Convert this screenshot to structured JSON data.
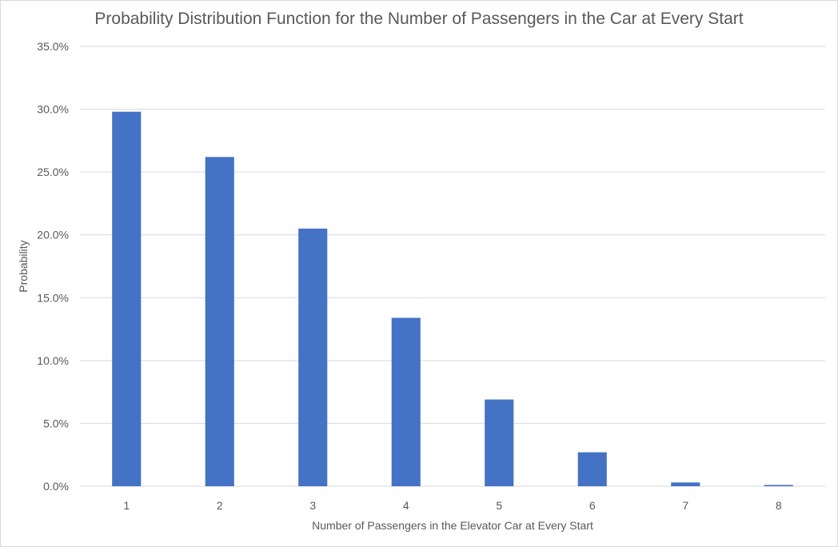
{
  "chart_data": {
    "type": "bar",
    "title": "Probability Distribution Function for the Number of Passengers in the Car at Every Start",
    "xlabel": "Number of Passengers in the Elevator Car at Every Start",
    "ylabel": "Probability",
    "categories": [
      "1",
      "2",
      "3",
      "4",
      "5",
      "6",
      "7",
      "8"
    ],
    "values": [
      0.298,
      0.262,
      0.205,
      0.134,
      0.069,
      0.027,
      0.003,
      0.001
    ],
    "ylim": [
      0,
      0.35
    ],
    "yticks": [
      {
        "value": 0.0,
        "label": "0.0%"
      },
      {
        "value": 0.05,
        "label": "5.0%"
      },
      {
        "value": 0.1,
        "label": "10.0%"
      },
      {
        "value": 0.15,
        "label": "15.0%"
      },
      {
        "value": 0.2,
        "label": "20.0%"
      },
      {
        "value": 0.25,
        "label": "25.0%"
      },
      {
        "value": 0.3,
        "label": "30.0%"
      },
      {
        "value": 0.35,
        "label": "35.0%"
      }
    ],
    "grid": true,
    "legend": "none",
    "bar_color": "#4472C4",
    "grid_color": "#d9d9d9",
    "text_color": "#595959"
  }
}
